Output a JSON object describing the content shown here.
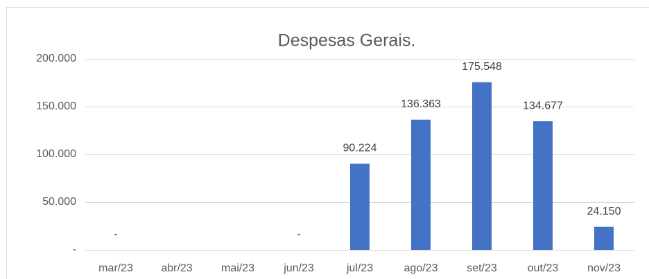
{
  "chart_data": {
    "type": "bar",
    "title": "Despesas Gerais.",
    "categories": [
      "mar/23",
      "abr/23",
      "mai/23",
      "jun/23",
      "jul/23",
      "ago/23",
      "set/23",
      "out/23",
      "nov/23"
    ],
    "values": [
      0,
      null,
      null,
      0,
      90224,
      136363,
      175548,
      134677,
      24150
    ],
    "value_labels": [
      "-",
      null,
      null,
      "-",
      "90.224",
      "136.363",
      "175.548",
      "134.677",
      "24.150"
    ],
    "color": "#4472c4",
    "ylim": [
      0,
      200000
    ],
    "yticks": [
      {
        "value": 0,
        "label": "-"
      },
      {
        "value": 50000,
        "label": "50.000"
      },
      {
        "value": 100000,
        "label": "100.000"
      },
      {
        "value": 150000,
        "label": "150.000"
      },
      {
        "value": 200000,
        "label": "200.000"
      }
    ],
    "grid": true
  }
}
